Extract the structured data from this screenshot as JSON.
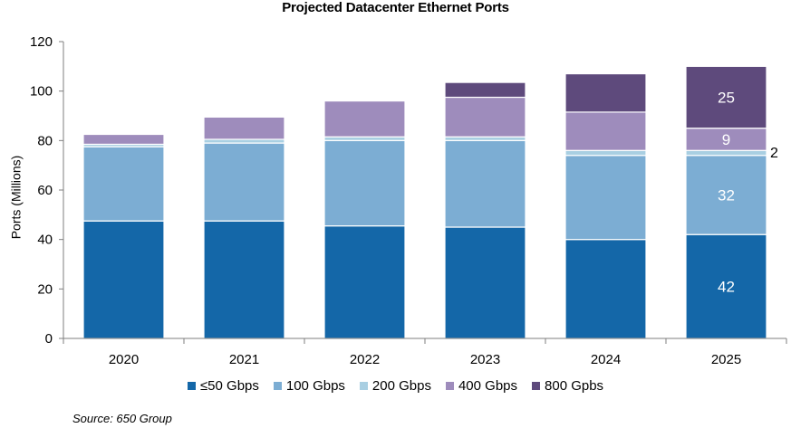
{
  "title": "Projected Datacenter Ethernet Ports",
  "source": "Source: 650 Group",
  "chart_data": {
    "type": "bar",
    "stacked": true,
    "title": "Projected Datacenter Ethernet Ports",
    "xlabel": "",
    "ylabel": "Ports (Millions)",
    "ylim": [
      0,
      120
    ],
    "yticks": [
      0,
      20,
      40,
      60,
      80,
      100,
      120
    ],
    "grid": false,
    "legend_position": "bottom",
    "categories": [
      "2020",
      "2021",
      "2022",
      "2023",
      "2024",
      "2025"
    ],
    "series": [
      {
        "name": "≤50 Gbps",
        "color": "#1467a8",
        "values": [
          47.5,
          47.5,
          45.5,
          45,
          40,
          42
        ]
      },
      {
        "name": "100 Gbps",
        "color": "#7cadd3",
        "values": [
          30,
          31.5,
          34.5,
          35,
          34,
          32
        ]
      },
      {
        "name": "200 Gbps",
        "color": "#a9cfe2",
        "values": [
          1,
          1.5,
          1.5,
          1.5,
          2,
          2
        ]
      },
      {
        "name": "400 Gbps",
        "color": "#9e8cbc",
        "values": [
          4,
          9,
          14.5,
          16,
          15.5,
          9
        ]
      },
      {
        "name": "800 Gpbs",
        "color": "#5e4a7c",
        "values": [
          0,
          0,
          0,
          6,
          15.5,
          25
        ]
      }
    ],
    "data_labels": [
      {
        "category": "2025",
        "series": "≤50 Gbps",
        "text": "42"
      },
      {
        "category": "2025",
        "series": "100 Gbps",
        "text": "32"
      },
      {
        "category": "2025",
        "series": "200 Gbps",
        "text": "2"
      },
      {
        "category": "2025",
        "series": "400 Gbps",
        "text": "9"
      },
      {
        "category": "2025",
        "series": "800 Gpbs",
        "text": "25"
      }
    ]
  }
}
